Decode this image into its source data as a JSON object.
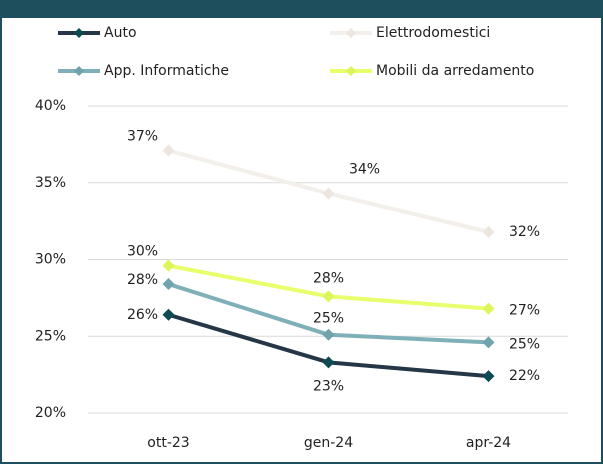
{
  "chart_data": {
    "type": "line",
    "categories": [
      "ott-23",
      "gen-24",
      "apr-24"
    ],
    "series": [
      {
        "name": "Auto",
        "color": "#253746",
        "marker_color": "#0d4b52",
        "values": [
          26.4,
          23.3,
          22.4
        ],
        "value_labels": [
          "26%",
          "23%",
          "22%"
        ]
      },
      {
        "name": "Elettrodomestici",
        "color": "#f3efea",
        "marker_color": "#ece6df",
        "values": [
          37.1,
          34.3,
          31.8
        ],
        "value_labels": [
          "37%",
          "34%",
          "32%"
        ]
      },
      {
        "name": "App. Informatiche",
        "color": "#7fb0b8",
        "marker_color": "#6fa4ad",
        "values": [
          28.4,
          25.1,
          24.6
        ],
        "value_labels": [
          "28%",
          "25%",
          "25%"
        ]
      },
      {
        "name": "Mobili da arredamento",
        "color": "#e9ff6b",
        "marker_color": "#ddf45a",
        "values": [
          29.6,
          27.6,
          26.8
        ],
        "value_labels": [
          "30%",
          "28%",
          "27%"
        ]
      }
    ],
    "ylim": [
      20,
      40
    ],
    "yticks": [
      {
        "value": 20,
        "label": "20%"
      },
      {
        "value": 25,
        "label": "25%"
      },
      {
        "value": 30,
        "label": "30%"
      },
      {
        "value": 35,
        "label": "35%"
      },
      {
        "value": 40,
        "label": "40%"
      }
    ],
    "grid": true
  }
}
